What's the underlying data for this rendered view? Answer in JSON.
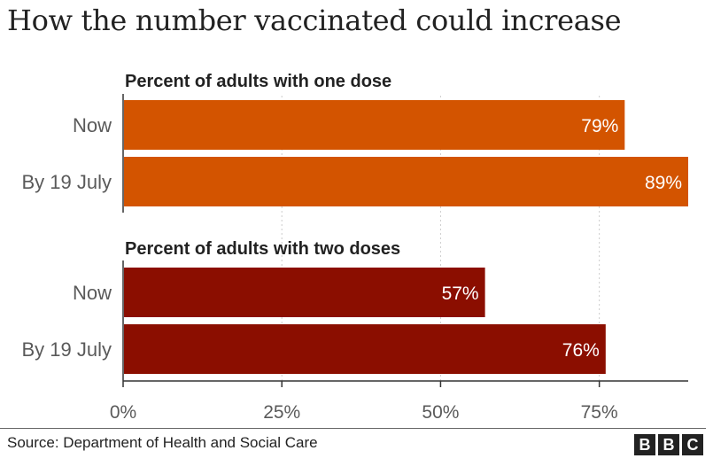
{
  "title": "How the number vaccinated could increase",
  "source": "Source: Department of Health and Social Care",
  "logo": [
    "B",
    "B",
    "C"
  ],
  "colors": {
    "one_dose": "#D35400",
    "two_doses": "#8B0E00",
    "axis": "#333333",
    "grid": "#cccccc"
  },
  "chart_data": {
    "type": "bar",
    "orientation": "horizontal",
    "title": "How the number vaccinated could increase",
    "xlim": [
      0,
      89
    ],
    "xticks": [
      0,
      25,
      50,
      75
    ],
    "xtick_labels": [
      "0%",
      "25%",
      "50%",
      "75%"
    ],
    "panels": [
      {
        "title": "Percent of adults with one dose",
        "categories": [
          "Now",
          "By 19 July"
        ],
        "values": [
          79,
          89
        ],
        "value_labels": [
          "79%",
          "89%"
        ]
      },
      {
        "title": "Percent of adults with two doses",
        "categories": [
          "Now",
          "By 19 July"
        ],
        "values": [
          57,
          76
        ],
        "value_labels": [
          "57%",
          "76%"
        ]
      }
    ]
  }
}
